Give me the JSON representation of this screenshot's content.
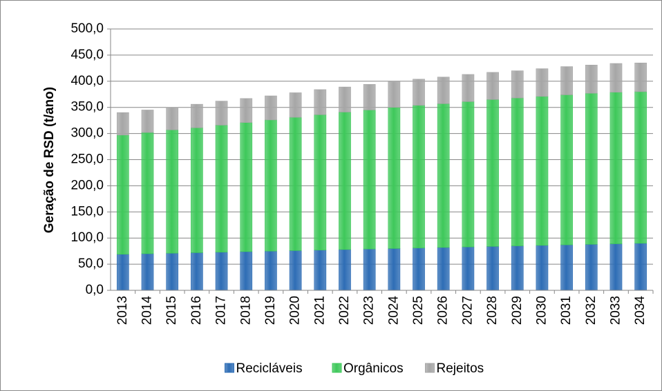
{
  "chart_data": {
    "type": "stacked_bar",
    "y_label": "Geração de RSD (t/ano)",
    "categories": [
      "2013",
      "2014",
      "2015",
      "2016",
      "2017",
      "2018",
      "2019",
      "2020",
      "2021",
      "2022",
      "2023",
      "2024",
      "2025",
      "2026",
      "2027",
      "2028",
      "2029",
      "2030",
      "2031",
      "2032",
      "2033",
      "2034"
    ],
    "series": [
      {
        "name": "Recicláveis",
        "color": "#2e6db5",
        "values": [
          69,
          70,
          71,
          72,
          73,
          74,
          75,
          76,
          77,
          78,
          79,
          80,
          81,
          82,
          83,
          84,
          85,
          86,
          87,
          88,
          89,
          90
        ]
      },
      {
        "name": "Orgânicos",
        "color": "#3ec85a",
        "values": [
          228,
          232,
          236,
          239,
          243,
          247,
          251,
          255,
          259,
          263,
          266,
          270,
          273,
          275,
          278,
          281,
          283,
          285,
          287,
          289,
          290,
          290
        ]
      },
      {
        "name": "Rejeitos",
        "color": "#a6a6a6",
        "values": [
          43,
          43,
          43,
          45,
          46,
          46,
          46,
          47,
          48,
          48,
          49,
          49,
          50,
          51,
          52,
          52,
          52,
          53,
          54,
          54,
          55,
          55
        ]
      }
    ],
    "ylim": [
      0,
      500
    ],
    "yticks": [
      {
        "value": 0,
        "label": "0,0"
      },
      {
        "value": 50,
        "label": "50,0"
      },
      {
        "value": 100,
        "label": "100,0"
      },
      {
        "value": 150,
        "label": "150,0"
      },
      {
        "value": 200,
        "label": "200,0"
      },
      {
        "value": 250,
        "label": "250,0"
      },
      {
        "value": 300,
        "label": "300,0"
      },
      {
        "value": 350,
        "label": "350,0"
      },
      {
        "value": 400,
        "label": "400,0"
      },
      {
        "value": 450,
        "label": "450,0"
      },
      {
        "value": 500,
        "label": "500,0"
      }
    ],
    "grid": true,
    "legend": "bottom"
  }
}
